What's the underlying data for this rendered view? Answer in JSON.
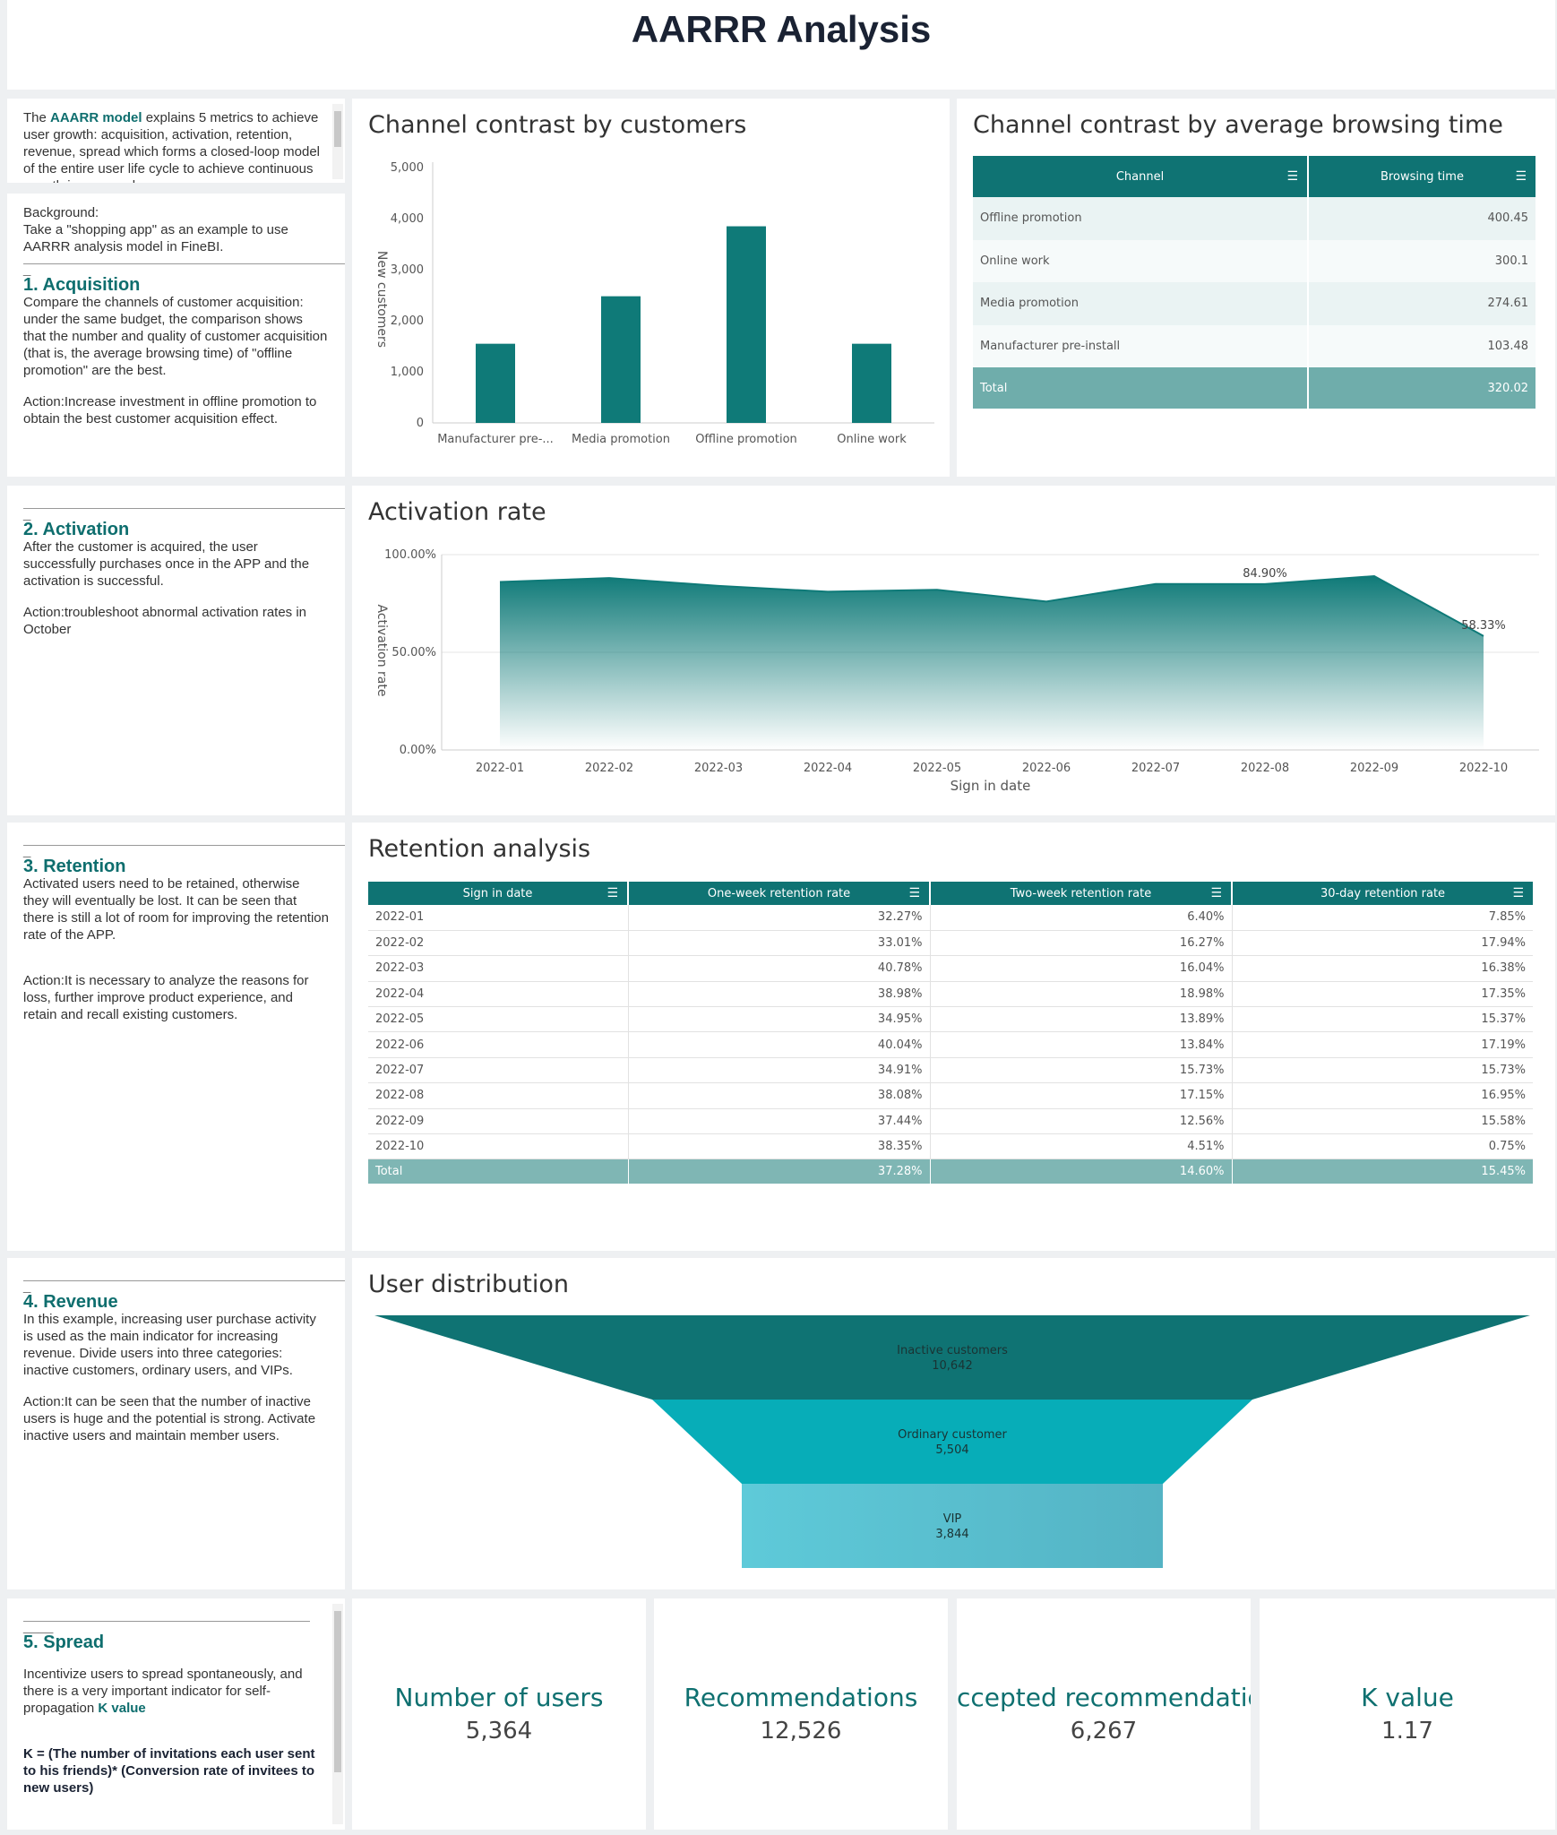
{
  "page": {
    "title": "AARRR Analysis"
  },
  "intro": {
    "lead_before": "The ",
    "lead_bold": "AAARR model",
    "lead_after": " explains 5 metrics to achieve user growth: acquisition, activation, retention, revenue, spread which forms a closed-loop model of the entire user life cycle to achieve continuous growth in user scale"
  },
  "acquisition_text": {
    "background_label": "Background:",
    "background": "Take a \"shopping app\" as an example to use AARRR analysis model in FineBI.",
    "heading": "1. Acquisition",
    "body": "Compare the channels of customer acquisition: under the same budget, the comparison shows that the number and quality of customer acquisition (that is, the average browsing time) of \"offline promotion\" are the best.",
    "action": "Action:Increase investment in offline promotion to obtain the best customer acquisition effect."
  },
  "activation_text": {
    "heading": "2. Activation",
    "body": "After the customer is acquired, the user successfully purchases once in the APP and the activation is successful.",
    "action": "Action:troubleshoot abnormal activation rates in October"
  },
  "retention_text": {
    "heading": "3. Retention",
    "body": "Activated users need to be retained, otherwise they will eventually be lost. It can be seen that there is still a lot of room for improving the retention rate of the APP.",
    "action": "Action:It is necessary to analyze the reasons for loss, further improve product experience, and retain and recall existing customers."
  },
  "revenue_text": {
    "heading": "4. Revenue",
    "body": "In this example, increasing user purchase activity is used as the main indicator for increasing revenue. Divide users into three categories: inactive customers, ordinary users, and VIPs.",
    "action": "Action:It can be seen that the number of inactive users is huge and the potential is strong. Activate inactive users and maintain member users."
  },
  "spread_text": {
    "heading": "5. Spread",
    "body_before": "Incentivize users to spread spontaneously, and there is a very important indicator for self-propagation ",
    "body_bold": "K value",
    "formula": "K = (The number of invitations each user sent to his friends)* (Conversion rate of invitees to new users)"
  },
  "bar_chart": {
    "title": "Channel contrast by customers",
    "ylabel": "New customers",
    "yticks": [
      "5,000",
      "4,000",
      "3,000",
      "2,000",
      "1,000",
      "0"
    ],
    "chart_data": {
      "type": "bar",
      "categories": [
        "Manufacturer pre-...",
        "Media promotion",
        "Offline promotion",
        "Online work"
      ],
      "values": [
        1550,
        2480,
        3850,
        1550
      ],
      "ylim": [
        0,
        5000
      ],
      "ylabel": "New customers",
      "color": "#0f7a78"
    }
  },
  "browse_table": {
    "title": "Channel contrast by average browsing time",
    "headers": [
      "Channel",
      "Browsing time"
    ],
    "rows": [
      [
        "Offline promotion",
        "400.45"
      ],
      [
        "Online work",
        "300.1"
      ],
      [
        "Media promotion",
        "274.61"
      ],
      [
        "Manufacturer pre-install",
        "103.48"
      ]
    ],
    "total": [
      "Total",
      "320.02"
    ]
  },
  "activation_chart": {
    "title": "Activation rate",
    "ylabel": "Activation rate",
    "xlabel": "Sign in date",
    "yticks": [
      "100.00%",
      "50.00%",
      "0.00%"
    ],
    "chart_data": {
      "type": "area",
      "x": [
        "2022-01",
        "2022-02",
        "2022-03",
        "2022-04",
        "2022-05",
        "2022-06",
        "2022-07",
        "2022-08",
        "2022-09",
        "2022-10"
      ],
      "values": [
        0.86,
        0.88,
        0.84,
        0.81,
        0.82,
        0.76,
        0.85,
        0.849,
        0.89,
        0.5833
      ],
      "ylim": [
        0,
        1
      ],
      "labels": [
        {
          "index": 7,
          "text": "84.90%"
        },
        {
          "index": 9,
          "text": "58.33%"
        }
      ],
      "color": "#0f7a78"
    }
  },
  "retention_table": {
    "title": "Retention analysis",
    "headers": [
      "Sign in date",
      "One-week retention rate",
      "Two-week retention rate",
      "30-day retention rate"
    ],
    "rows": [
      [
        "2022-01",
        "32.27%",
        "6.40%",
        "7.85%"
      ],
      [
        "2022-02",
        "33.01%",
        "16.27%",
        "17.94%"
      ],
      [
        "2022-03",
        "40.78%",
        "16.04%",
        "16.38%"
      ],
      [
        "2022-04",
        "38.98%",
        "18.98%",
        "17.35%"
      ],
      [
        "2022-05",
        "34.95%",
        "13.89%",
        "15.37%"
      ],
      [
        "2022-06",
        "40.04%",
        "13.84%",
        "17.19%"
      ],
      [
        "2022-07",
        "34.91%",
        "15.73%",
        "15.73%"
      ],
      [
        "2022-08",
        "38.08%",
        "17.15%",
        "16.95%"
      ],
      [
        "2022-09",
        "37.44%",
        "12.56%",
        "15.58%"
      ],
      [
        "2022-10",
        "38.35%",
        "4.51%",
        "0.75%"
      ]
    ],
    "total": [
      "Total",
      "37.28%",
      "14.60%",
      "15.45%"
    ]
  },
  "funnel": {
    "title": "User distribution",
    "chart_data": {
      "type": "funnel",
      "categories": [
        "Inactive customers",
        "Ordinary customer",
        "VIP"
      ],
      "values": [
        10642,
        5504,
        3844
      ],
      "value_labels": [
        "10,642",
        "5,504",
        "3,844"
      ],
      "colors": [
        "#0f7373",
        "#07adb8",
        "#5ec8d8"
      ]
    }
  },
  "kpis": [
    {
      "label": "Number of users",
      "value": "5,364"
    },
    {
      "label": "Recommendations",
      "value": "12,526"
    },
    {
      "label": "ccepted recommendatior",
      "value": "6,267"
    },
    {
      "label": "K value",
      "value": "1.17"
    }
  ],
  "colors": {
    "accent": "#0f7373",
    "accent_text": "#0e6e6e",
    "row_even": "#eaf3f3",
    "total_row": "#6fadab"
  },
  "icons": {
    "sort": "sort-icon"
  }
}
